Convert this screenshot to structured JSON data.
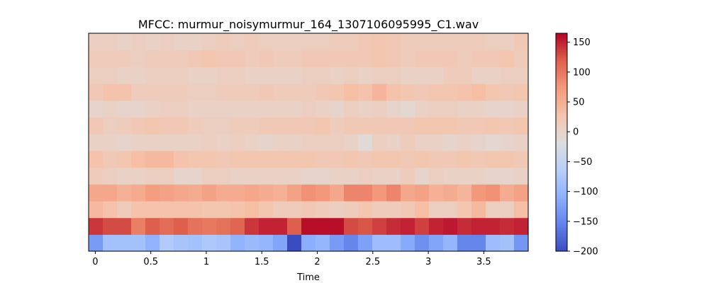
{
  "chart_data": {
    "type": "heatmap",
    "title": "MFCC: murmur_noisymurmur_164_1307106095995_C1.wav",
    "xlabel": "Time",
    "ylabel": "",
    "x_start": -0.06,
    "x_end": 3.9,
    "x_ticks": [
      0,
      0.5,
      1,
      1.5,
      2,
      2.5,
      3,
      3.5
    ],
    "x_tick_labels": [
      "0",
      "0.5",
      "1",
      "1.5",
      "2",
      "2.5",
      "3",
      "3.5"
    ],
    "n_frames": 31,
    "colorbar": {
      "min": -200,
      "max": 165,
      "ticks": [
        150,
        100,
        50,
        0,
        -50,
        -100,
        -150,
        -200
      ],
      "tick_labels": [
        "150",
        "100",
        "50",
        "0",
        "−50",
        "−100",
        "−150",
        "−200"
      ],
      "colormap": "coolwarm"
    },
    "rows_bottom_to_top": [
      [
        -130,
        -85,
        -85,
        -85,
        -105,
        -70,
        -80,
        -85,
        -75,
        -80,
        -105,
        -95,
        -100,
        -120,
        -200,
        -110,
        -100,
        -130,
        -150,
        -125,
        -90,
        -90,
        -115,
        -140,
        -120,
        -100,
        -150,
        -150,
        -90,
        -85,
        -135
      ],
      [
        140,
        130,
        130,
        95,
        120,
        110,
        120,
        105,
        100,
        105,
        115,
        140,
        150,
        150,
        120,
        160,
        160,
        160,
        130,
        125,
        135,
        145,
        150,
        135,
        150,
        155,
        145,
        150,
        150,
        145,
        150
      ],
      [
        40,
        30,
        15,
        30,
        30,
        30,
        30,
        30,
        25,
        25,
        30,
        35,
        25,
        15,
        15,
        20,
        15,
        10,
        15,
        25,
        15,
        15,
        20,
        35,
        10,
        10,
        25,
        40,
        10,
        10,
        35
      ],
      [
        60,
        60,
        50,
        55,
        70,
        65,
        60,
        55,
        65,
        55,
        55,
        60,
        55,
        50,
        65,
        80,
        75,
        60,
        90,
        90,
        75,
        90,
        60,
        65,
        50,
        55,
        45,
        75,
        80,
        55,
        65
      ],
      [
        15,
        10,
        5,
        5,
        10,
        10,
        0,
        0,
        10,
        10,
        5,
        5,
        5,
        5,
        5,
        0,
        0,
        5,
        5,
        10,
        5,
        5,
        15,
        0,
        10,
        5,
        5,
        5,
        0,
        0,
        5
      ],
      [
        30,
        20,
        25,
        35,
        40,
        40,
        30,
        25,
        25,
        20,
        25,
        25,
        25,
        25,
        25,
        25,
        20,
        20,
        25,
        20,
        25,
        25,
        20,
        25,
        20,
        20,
        25,
        20,
        25,
        25,
        20
      ],
      [
        5,
        5,
        0,
        5,
        5,
        5,
        5,
        5,
        10,
        5,
        10,
        5,
        0,
        5,
        5,
        10,
        10,
        10,
        5,
        -10,
        10,
        5,
        15,
        5,
        5,
        0,
        5,
        0,
        -5,
        0,
        5
      ],
      [
        20,
        10,
        15,
        20,
        25,
        20,
        20,
        15,
        10,
        10,
        15,
        15,
        20,
        20,
        20,
        20,
        25,
        15,
        20,
        20,
        20,
        20,
        20,
        25,
        25,
        25,
        20,
        20,
        25,
        20,
        25
      ],
      [
        0,
        5,
        0,
        0,
        5,
        10,
        10,
        5,
        5,
        5,
        5,
        5,
        5,
        5,
        5,
        10,
        5,
        0,
        10,
        5,
        10,
        0,
        -5,
        5,
        10,
        10,
        5,
        5,
        0,
        0,
        5
      ],
      [
        20,
        30,
        30,
        15,
        15,
        15,
        15,
        10,
        10,
        15,
        15,
        15,
        20,
        15,
        15,
        15,
        20,
        25,
        35,
        30,
        45,
        30,
        25,
        20,
        25,
        25,
        30,
        35,
        25,
        20,
        25
      ],
      [
        10,
        10,
        5,
        5,
        10,
        10,
        10,
        5,
        5,
        10,
        10,
        5,
        5,
        5,
        5,
        10,
        10,
        5,
        10,
        5,
        10,
        10,
        5,
        5,
        5,
        15,
        15,
        5,
        5,
        10,
        10
      ],
      [
        15,
        15,
        15,
        10,
        15,
        15,
        15,
        20,
        25,
        20,
        20,
        15,
        20,
        15,
        15,
        20,
        20,
        20,
        20,
        20,
        25,
        20,
        15,
        20,
        20,
        20,
        15,
        20,
        20,
        25,
        15
      ],
      [
        10,
        10,
        5,
        10,
        5,
        10,
        5,
        5,
        10,
        15,
        10,
        15,
        10,
        10,
        10,
        10,
        10,
        15,
        15,
        20,
        25,
        20,
        15,
        15,
        15,
        15,
        15,
        15,
        10,
        10,
        20
      ]
    ]
  }
}
